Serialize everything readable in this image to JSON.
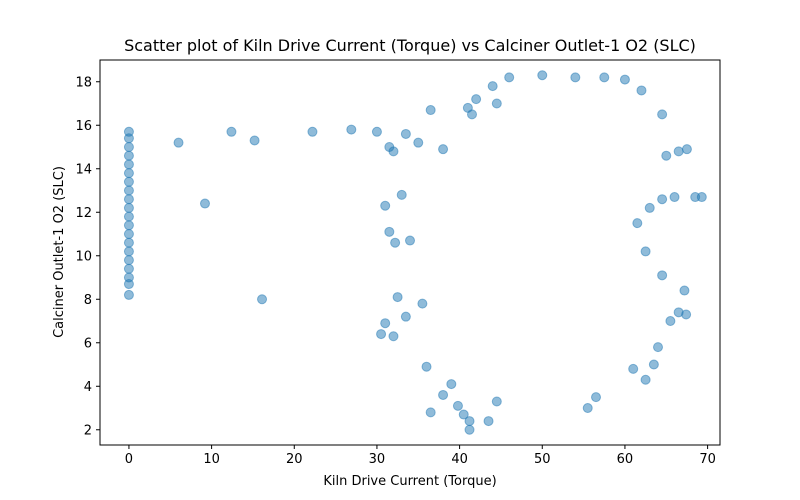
{
  "chart_data": {
    "type": "scatter",
    "title": "Scatter plot of Kiln Drive Current (Torque) vs Calciner Outlet-1 O2 (SLC)",
    "xlabel": "Kiln Drive Current (Torque)",
    "ylabel": "Calciner Outlet-1 O2 (SLC)",
    "xlim": [
      -3.5,
      71.5
    ],
    "ylim": [
      1.3,
      19.0
    ],
    "xticks": [
      0,
      10,
      20,
      30,
      40,
      50,
      60,
      70
    ],
    "yticks": [
      2,
      4,
      6,
      8,
      10,
      12,
      14,
      16,
      18
    ],
    "grid": false,
    "marker_color": "#1f77b4",
    "marker_alpha": 0.5,
    "series": [
      {
        "points": [
          [
            0,
            8.2
          ],
          [
            0,
            8.7
          ],
          [
            0,
            9.0
          ],
          [
            0,
            9.4
          ],
          [
            0,
            9.8
          ],
          [
            0,
            10.2
          ],
          [
            0,
            10.6
          ],
          [
            0,
            11.0
          ],
          [
            0,
            11.4
          ],
          [
            0,
            11.8
          ],
          [
            0,
            12.2
          ],
          [
            0,
            12.6
          ],
          [
            0,
            13.0
          ],
          [
            0,
            13.4
          ],
          [
            0,
            13.8
          ],
          [
            0,
            14.2
          ],
          [
            0,
            14.6
          ],
          [
            0,
            15.0
          ],
          [
            0,
            15.4
          ],
          [
            0,
            15.7
          ],
          [
            6.0,
            15.2
          ],
          [
            9.2,
            12.4
          ],
          [
            12.4,
            15.7
          ],
          [
            15.2,
            15.3
          ],
          [
            16.1,
            8.0
          ],
          [
            22.2,
            15.7
          ],
          [
            26.9,
            15.8
          ],
          [
            30.0,
            15.7
          ],
          [
            31.5,
            15.0
          ],
          [
            32.0,
            14.8
          ],
          [
            33.5,
            15.6
          ],
          [
            35.0,
            15.2
          ],
          [
            36.5,
            16.7
          ],
          [
            38.0,
            14.9
          ],
          [
            31.0,
            12.3
          ],
          [
            31.5,
            11.1
          ],
          [
            32.2,
            10.6
          ],
          [
            32.5,
            8.1
          ],
          [
            33.0,
            12.8
          ],
          [
            34.0,
            10.7
          ],
          [
            30.5,
            6.4
          ],
          [
            31.0,
            6.9
          ],
          [
            32.0,
            6.3
          ],
          [
            33.5,
            7.2
          ],
          [
            35.5,
            7.8
          ],
          [
            36.0,
            4.9
          ],
          [
            36.5,
            2.8
          ],
          [
            38.0,
            3.6
          ],
          [
            39.0,
            4.1
          ],
          [
            39.8,
            3.1
          ],
          [
            40.5,
            2.7
          ],
          [
            41.2,
            2.4
          ],
          [
            41.2,
            2.0
          ],
          [
            43.5,
            2.4
          ],
          [
            44.5,
            3.3
          ],
          [
            55.5,
            3.0
          ],
          [
            56.5,
            3.5
          ],
          [
            61.0,
            4.8
          ],
          [
            62.5,
            4.3
          ],
          [
            63.5,
            5.0
          ],
          [
            64.0,
            5.8
          ],
          [
            65.5,
            7.0
          ],
          [
            66.5,
            7.4
          ],
          [
            67.4,
            7.3
          ],
          [
            67.2,
            8.4
          ],
          [
            64.5,
            9.1
          ],
          [
            62.5,
            10.2
          ],
          [
            61.5,
            11.5
          ],
          [
            63.0,
            12.2
          ],
          [
            64.5,
            12.6
          ],
          [
            66.0,
            12.7
          ],
          [
            68.5,
            12.7
          ],
          [
            69.3,
            12.7
          ],
          [
            65.0,
            14.6
          ],
          [
            66.5,
            14.8
          ],
          [
            67.5,
            14.9
          ],
          [
            64.5,
            16.5
          ],
          [
            62.0,
            17.6
          ],
          [
            60.0,
            18.1
          ],
          [
            57.5,
            18.2
          ],
          [
            54.0,
            18.2
          ],
          [
            50.0,
            18.3
          ],
          [
            46.0,
            18.2
          ],
          [
            44.0,
            17.8
          ],
          [
            42.0,
            17.2
          ],
          [
            41.5,
            16.5
          ],
          [
            41.0,
            16.8
          ],
          [
            44.5,
            17.0
          ]
        ]
      }
    ]
  }
}
